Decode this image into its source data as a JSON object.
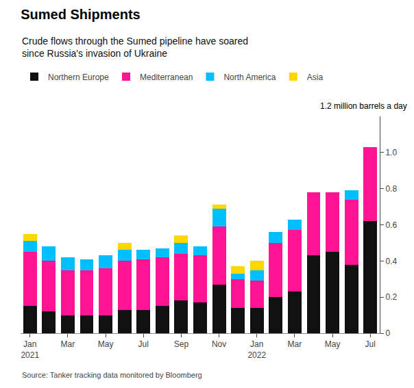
{
  "chart_data": {
    "type": "bar",
    "stacked": true,
    "title": "Sumed Shipments",
    "subtitle": "Crude flows through the Sumed pipeline have soared\nsince Russia's invasion of Ukraine",
    "ylabel": "1.2 million barrels a day",
    "source": "Source: Tanker tracking data monitored by Bloomberg",
    "categories": [
      "Jan\n2021",
      null,
      "Mar",
      null,
      "May",
      null,
      "Jul",
      null,
      "Sep",
      null,
      "Nov",
      null,
      "Jan\n2022",
      null,
      "Mar",
      null,
      "May",
      null,
      "Jul"
    ],
    "series": [
      {
        "name": "Northern Europe",
        "color": "#111111",
        "values": [
          0.15,
          0.12,
          0.1,
          0.1,
          0.1,
          0.13,
          0.13,
          0.15,
          0.18,
          0.17,
          0.27,
          0.14,
          0.14,
          0.2,
          0.23,
          0.43,
          0.45,
          0.38,
          0.62
        ]
      },
      {
        "name": "Mediterranean",
        "color": "#FF1493",
        "values": [
          0.3,
          0.28,
          0.25,
          0.25,
          0.26,
          0.27,
          0.28,
          0.27,
          0.26,
          0.26,
          0.32,
          0.16,
          0.15,
          0.3,
          0.34,
          0.35,
          0.33,
          0.36,
          0.41
        ]
      },
      {
        "name": "North America",
        "color": "#00BFFF",
        "values": [
          0.06,
          0.08,
          0.07,
          0.06,
          0.07,
          0.06,
          0.05,
          0.05,
          0.06,
          0.05,
          0.1,
          0.03,
          0.06,
          0.06,
          0.06,
          0.0,
          0.0,
          0.05,
          0.0
        ]
      },
      {
        "name": "Asia",
        "color": "#FFD700",
        "values": [
          0.04,
          0.0,
          0.0,
          0.0,
          0.0,
          0.04,
          0.0,
          0.0,
          0.04,
          0.0,
          0.02,
          0.04,
          0.05,
          0.0,
          0.0,
          0.0,
          0.0,
          0.0,
          0.0
        ]
      }
    ],
    "ylim": [
      0,
      1.2
    ],
    "yticks": [
      0,
      0.2,
      0.4,
      0.6,
      0.8,
      {
        "value": 1.0,
        "label": "1.0"
      }
    ],
    "grid": false,
    "legend": "top"
  }
}
